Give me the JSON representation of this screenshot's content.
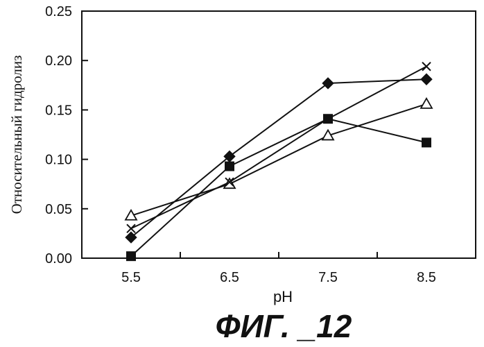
{
  "chart_data": {
    "type": "line",
    "xlabel": "pH",
    "ylabel": "Относительный гидролиз",
    "categories": [
      "5.5",
      "6.5",
      "7.5",
      "8.5"
    ],
    "x": [
      5.5,
      6.5,
      7.5,
      8.5
    ],
    "xlim": [
      5.0,
      9.0
    ],
    "ylim": [
      0.0,
      0.25
    ],
    "yticks": [
      "0.00",
      "0.05",
      "0.10",
      "0.15",
      "0.20",
      "0.25"
    ],
    "grid": false,
    "series": [
      {
        "marker": "diamond-filled",
        "values": [
          0.021,
          0.103,
          0.177,
          0.181
        ]
      },
      {
        "marker": "square-filled",
        "values": [
          0.002,
          0.093,
          0.141,
          0.117
        ]
      },
      {
        "marker": "triangle-open",
        "values": [
          0.043,
          0.075,
          0.124,
          0.156
        ]
      },
      {
        "marker": "x",
        "values": [
          0.03,
          0.077,
          0.141,
          0.194
        ]
      }
    ]
  },
  "caption": "ФИГ. _12",
  "colors": {
    "ink": "#111111",
    "background": "#ffffff"
  }
}
